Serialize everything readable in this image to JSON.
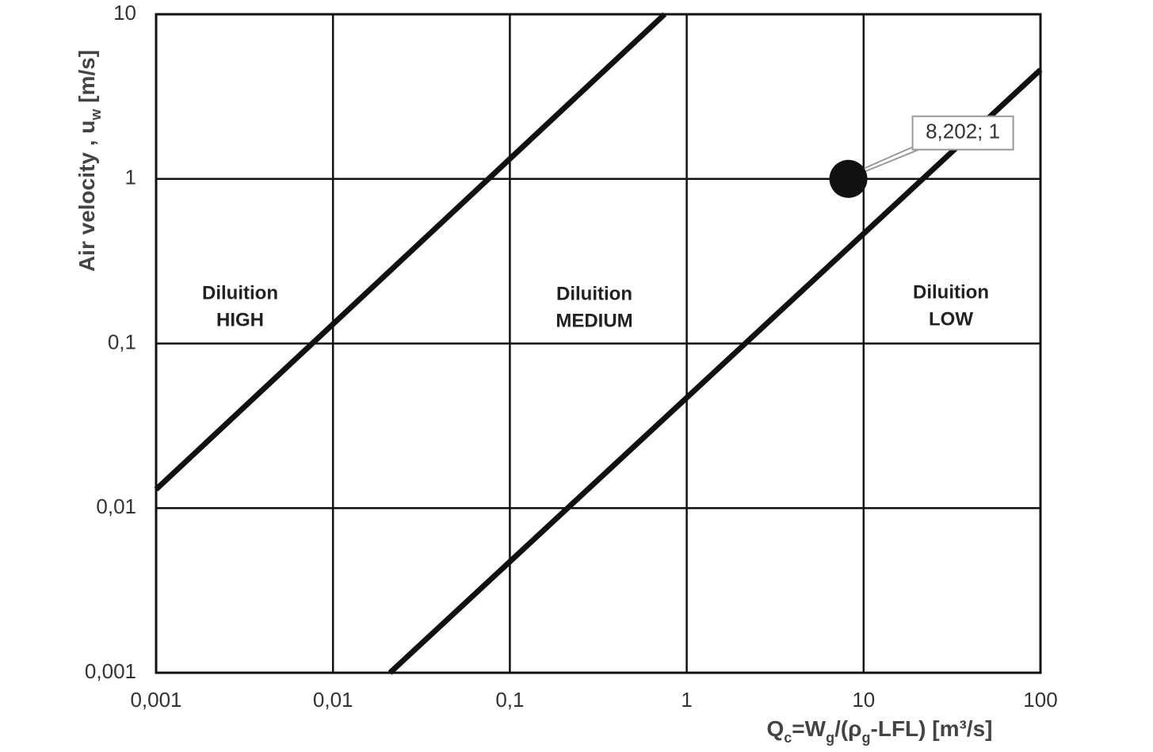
{
  "chart_data": {
    "type": "line",
    "x_label": [
      {
        "text": "Q"
      },
      {
        "text": "c",
        "sub": true
      },
      {
        "text": "=W"
      },
      {
        "text": "g",
        "sub": true
      },
      {
        "text": "/(ρ"
      },
      {
        "text": "g",
        "sub": true
      },
      {
        "text": "-LFL) [m³/s]"
      }
    ],
    "y_label": [
      {
        "text": "Air velocity , u"
      },
      {
        "text": "w",
        "sub": true
      },
      {
        "text": " [m/s]"
      }
    ],
    "xscale": "log",
    "yscale": "log",
    "grid": true,
    "xlim": [
      0.001,
      100
    ],
    "ylim": [
      0.001,
      10
    ],
    "xticks": [
      {
        "value": 0.001,
        "label": "0,001"
      },
      {
        "value": 0.01,
        "label": "0,01"
      },
      {
        "value": 0.1,
        "label": "0,1"
      },
      1,
      10,
      100
    ],
    "yticks": [
      {
        "value": 0.001,
        "label": "0,001"
      },
      {
        "value": 0.01,
        "label": "0,01"
      },
      {
        "value": 0.1,
        "label": "0,1"
      },
      1,
      10
    ],
    "series": [
      {
        "type": "line",
        "color": "#111111",
        "x": [
          0.001,
          0.75
        ],
        "values": [
          0.013,
          10
        ]
      },
      {
        "type": "line",
        "color": "#111111",
        "x": [
          0.021,
          100
        ],
        "values": [
          0.001,
          4.6
        ]
      },
      {
        "type": "scatter",
        "color": "#111111",
        "x": [
          8.202
        ],
        "values": [
          1
        ],
        "value_labels": [
          "8,202; 1"
        ]
      }
    ],
    "annotations": [
      [
        "Diluition",
        "HIGH"
      ],
      [
        "Diluition",
        "MEDIUM"
      ],
      [
        "Diluition",
        "LOW"
      ]
    ]
  }
}
